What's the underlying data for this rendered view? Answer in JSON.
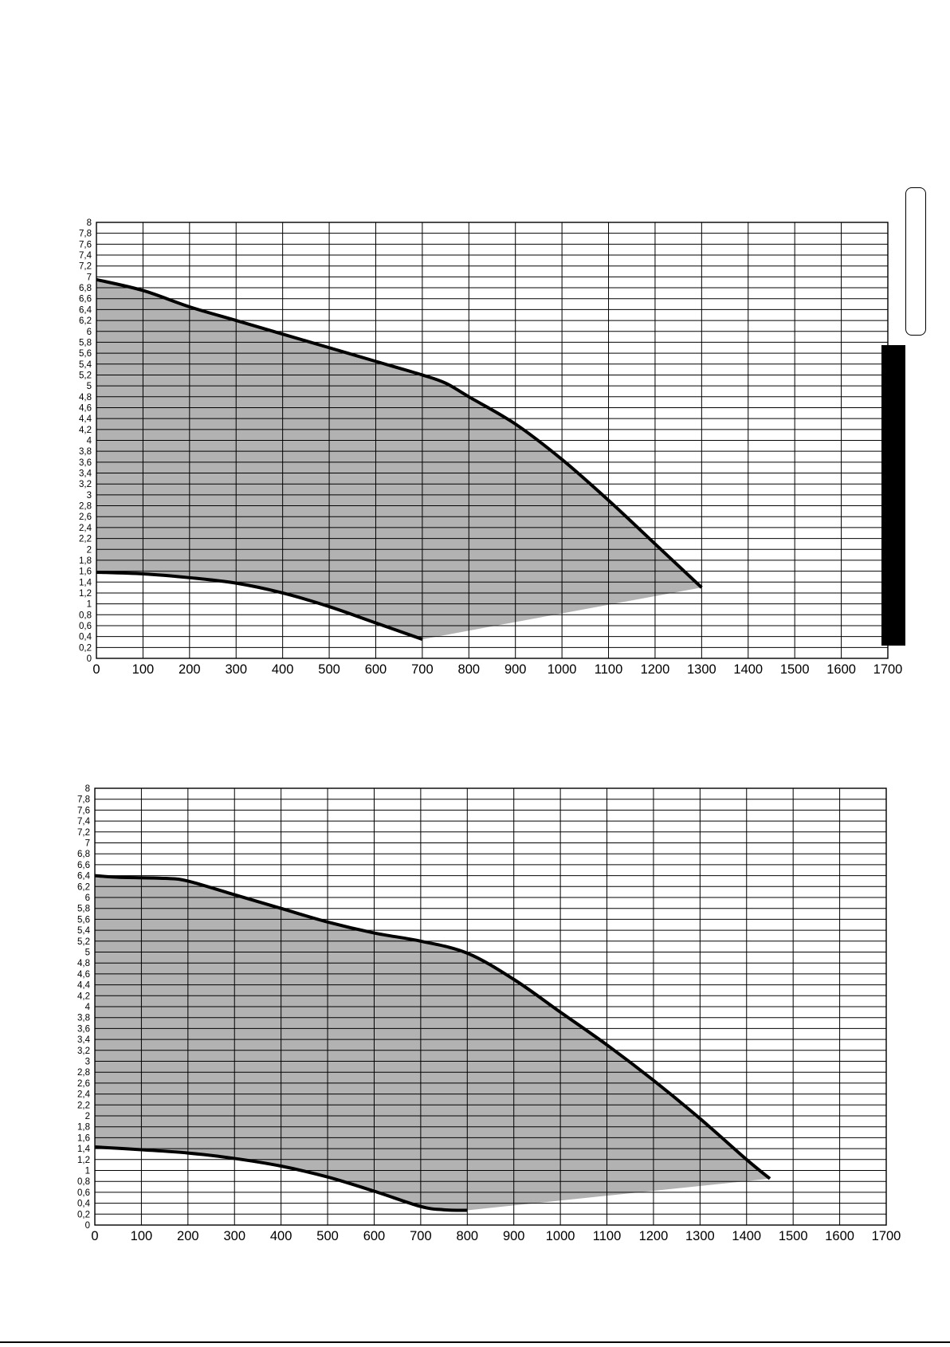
{
  "chart_data": [
    {
      "type": "area",
      "title": "",
      "xlabel": "",
      "ylabel": "",
      "xlim": [
        0,
        1700
      ],
      "ylim": [
        0,
        8
      ],
      "x_ticks": [
        "0",
        "100",
        "200",
        "300",
        "400",
        "500",
        "600",
        "700",
        "800",
        "900",
        "1000",
        "1100",
        "1200",
        "1300",
        "1400",
        "1500",
        "1600",
        "1700"
      ],
      "y_ticks": [
        "0",
        "0,2",
        "0,4",
        "0,6",
        "0,8",
        "1",
        "1,2",
        "1,4",
        "1,6",
        "1,8",
        "2",
        "2,2",
        "2,4",
        "2,6",
        "2,8",
        "3",
        "3,2",
        "3,4",
        "3,6",
        "3,8",
        "4",
        "4,2",
        "4,4",
        "4,6",
        "4,8",
        "5",
        "5,2",
        "5,4",
        "5,6",
        "5,8",
        "6",
        "6,2",
        "6,4",
        "6,6",
        "6,8",
        "7",
        "7,2",
        "7,4",
        "7,6",
        "7,8",
        "8"
      ],
      "grid": true,
      "fill_color": "#b2b2b2",
      "series": [
        {
          "x": [
            0,
            100,
            200,
            300,
            400,
            500,
            600,
            700,
            750,
            800,
            900,
            1000,
            1100,
            1200,
            1300
          ],
          "y": [
            6.95,
            6.75,
            6.45,
            6.2,
            5.95,
            5.7,
            5.45,
            5.2,
            5.05,
            4.8,
            4.3,
            3.65,
            2.9,
            2.1,
            1.3
          ]
        },
        {
          "x": [
            0,
            100,
            200,
            300,
            400,
            500,
            600,
            700
          ],
          "y": [
            1.58,
            1.55,
            1.48,
            1.38,
            1.2,
            0.95,
            0.65,
            0.35
          ]
        },
        {
          "x": [
            700,
            1300
          ],
          "y": [
            0.35,
            1.3
          ]
        }
      ]
    },
    {
      "type": "area",
      "title": "",
      "xlabel": "",
      "ylabel": "",
      "xlim": [
        0,
        1700
      ],
      "ylim": [
        0,
        8
      ],
      "x_ticks": [
        "0",
        "100",
        "200",
        "300",
        "400",
        "500",
        "600",
        "700",
        "800",
        "900",
        "1000",
        "1100",
        "1200",
        "1300",
        "1400",
        "1500",
        "1600",
        "1700"
      ],
      "y_ticks": [
        "0",
        "0,2",
        "0,4",
        "0,6",
        "0,8",
        "1",
        "1,2",
        "1,4",
        "1,6",
        "1,8",
        "2",
        "2,2",
        "2,4",
        "2,6",
        "2,8",
        "3",
        "3,2",
        "3,4",
        "3,6",
        "3,8",
        "4",
        "4,2",
        "4,4",
        "4,6",
        "4,8",
        "5",
        "5,2",
        "5,4",
        "5,6",
        "5,8",
        "6",
        "6,2",
        "6,4",
        "6,6",
        "6,8",
        "7",
        "7,2",
        "7,4",
        "7,6",
        "7,8",
        "8"
      ],
      "grid": true,
      "fill_color": "#b2b2b2",
      "series": [
        {
          "x": [
            0,
            50,
            150,
            200,
            300,
            400,
            500,
            600,
            700,
            800,
            900,
            1000,
            1100,
            1200,
            1300,
            1400,
            1450
          ],
          "y": [
            6.4,
            6.37,
            6.35,
            6.3,
            6.05,
            5.8,
            5.55,
            5.35,
            5.2,
            4.98,
            4.5,
            3.9,
            3.3,
            2.65,
            1.95,
            1.2,
            0.85
          ]
        },
        {
          "x": [
            0,
            100,
            200,
            300,
            400,
            500,
            600,
            700,
            750,
            800
          ],
          "y": [
            1.43,
            1.38,
            1.32,
            1.22,
            1.08,
            0.88,
            0.62,
            0.34,
            0.28,
            0.27
          ]
        },
        {
          "x": [
            800,
            1450
          ],
          "y": [
            0.27,
            0.85
          ]
        }
      ]
    }
  ]
}
